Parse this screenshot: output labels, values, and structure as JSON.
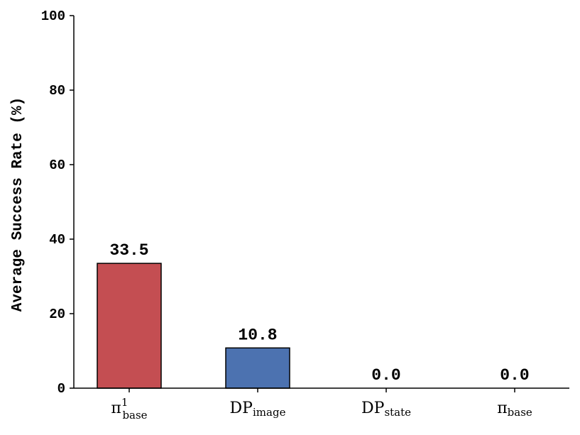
{
  "chart_data": {
    "type": "bar",
    "ylabel": "Average Success Rate (%)",
    "ylim": [
      0,
      100
    ],
    "yticks": [
      "0",
      "20",
      "40",
      "60",
      "80",
      "100"
    ],
    "categories": [
      {
        "main": "π",
        "sub": "base",
        "sup": "1"
      },
      {
        "main": "DP",
        "sub": "image",
        "sup": ""
      },
      {
        "main": "DP",
        "sub": "state",
        "sup": ""
      },
      {
        "main": "π",
        "sub": "base",
        "sup": ""
      }
    ],
    "values": [
      33.5,
      10.8,
      0.0,
      0.0
    ],
    "value_labels": [
      "33.5",
      "10.8",
      "0.0",
      "0.0"
    ],
    "colors": [
      "#c44e52",
      "#4c72b0",
      "#ffffff",
      "#ffffff"
    ],
    "grid": false
  }
}
